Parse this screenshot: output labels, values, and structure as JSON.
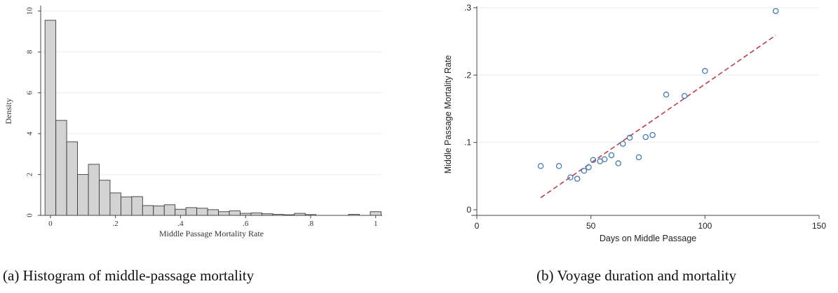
{
  "captions": {
    "a": "(a) Histogram of middle-passage mortality",
    "b": "(b) Voyage duration and mortality"
  },
  "chart_data": [
    {
      "type": "bar",
      "subtype": "histogram",
      "xlabel": "Middle Passage Mortality Rate",
      "ylabel": "Density",
      "xlim": [
        -0.03,
        1.02
      ],
      "ylim": [
        0,
        10.2
      ],
      "xticks": [
        {
          "v": 0,
          "t": "0"
        },
        {
          "v": 0.2,
          "t": ".2"
        },
        {
          "v": 0.4,
          "t": ".4"
        },
        {
          "v": 0.6,
          "t": ".6"
        },
        {
          "v": 0.8,
          "t": ".8"
        },
        {
          "v": 1,
          "t": "1"
        }
      ],
      "yticks": [
        {
          "v": 0,
          "t": "0"
        },
        {
          "v": 2,
          "t": "2"
        },
        {
          "v": 4,
          "t": "4"
        },
        {
          "v": 6,
          "t": "6"
        },
        {
          "v": 8,
          "t": "8"
        },
        {
          "v": 10,
          "t": "10"
        }
      ],
      "grid": true,
      "bar_color": "#d3d3d3",
      "bin_width": 0.0333,
      "bins": [
        {
          "x0": -0.0167,
          "v": 9.55
        },
        {
          "x0": 0.0167,
          "v": 4.65
        },
        {
          "x0": 0.05,
          "v": 3.6
        },
        {
          "x0": 0.0833,
          "v": 2.0
        },
        {
          "x0": 0.1167,
          "v": 2.5
        },
        {
          "x0": 0.15,
          "v": 1.72
        },
        {
          "x0": 0.1833,
          "v": 1.1
        },
        {
          "x0": 0.2167,
          "v": 0.9
        },
        {
          "x0": 0.25,
          "v": 0.92
        },
        {
          "x0": 0.2833,
          "v": 0.48
        },
        {
          "x0": 0.3167,
          "v": 0.46
        },
        {
          "x0": 0.35,
          "v": 0.52
        },
        {
          "x0": 0.3833,
          "v": 0.3
        },
        {
          "x0": 0.4167,
          "v": 0.38
        },
        {
          "x0": 0.45,
          "v": 0.35
        },
        {
          "x0": 0.4833,
          "v": 0.28
        },
        {
          "x0": 0.5167,
          "v": 0.18
        },
        {
          "x0": 0.55,
          "v": 0.22
        },
        {
          "x0": 0.5833,
          "v": 0.1
        },
        {
          "x0": 0.6167,
          "v": 0.12
        },
        {
          "x0": 0.65,
          "v": 0.08
        },
        {
          "x0": 0.6833,
          "v": 0.05
        },
        {
          "x0": 0.7167,
          "v": 0.03
        },
        {
          "x0": 0.75,
          "v": 0.1
        },
        {
          "x0": 0.7833,
          "v": 0.04
        },
        {
          "x0": 0.9167,
          "v": 0.05
        },
        {
          "x0": 0.9833,
          "v": 0.18
        }
      ]
    },
    {
      "type": "scatter",
      "xlabel": "Days on Middle Passage",
      "ylabel": "Middle Passage Mortality Rate",
      "xlim": [
        0,
        150
      ],
      "ylim": [
        0,
        0.3
      ],
      "xticks": [
        {
          "v": 0,
          "t": "0"
        },
        {
          "v": 50,
          "t": "50"
        },
        {
          "v": 100,
          "t": "100"
        },
        {
          "v": 150,
          "t": "150"
        }
      ],
      "yticks": [
        {
          "v": 0,
          "t": "0"
        },
        {
          "v": 0.1,
          "t": ".1"
        },
        {
          "v": 0.2,
          "t": ".2"
        },
        {
          "v": 0.3,
          "t": ".3"
        }
      ],
      "grid": true,
      "marker_color": "#4a7aa8",
      "fit_color": "#b5404d",
      "points": [
        {
          "x": 28,
          "y": 0.065
        },
        {
          "x": 36,
          "y": 0.065
        },
        {
          "x": 41,
          "y": 0.048
        },
        {
          "x": 44,
          "y": 0.046
        },
        {
          "x": 47,
          "y": 0.058
        },
        {
          "x": 49,
          "y": 0.063
        },
        {
          "x": 51,
          "y": 0.074
        },
        {
          "x": 54,
          "y": 0.072
        },
        {
          "x": 56,
          "y": 0.075
        },
        {
          "x": 59,
          "y": 0.081
        },
        {
          "x": 62,
          "y": 0.069
        },
        {
          "x": 64,
          "y": 0.098
        },
        {
          "x": 67,
          "y": 0.107
        },
        {
          "x": 71,
          "y": 0.078
        },
        {
          "x": 74,
          "y": 0.108
        },
        {
          "x": 77,
          "y": 0.111
        },
        {
          "x": 83,
          "y": 0.171
        },
        {
          "x": 91,
          "y": 0.169
        },
        {
          "x": 100,
          "y": 0.206
        },
        {
          "x": 131,
          "y": 0.295
        }
      ],
      "fit_line": {
        "x": [
          28,
          131
        ],
        "y": [
          0.018,
          0.259
        ]
      }
    }
  ]
}
